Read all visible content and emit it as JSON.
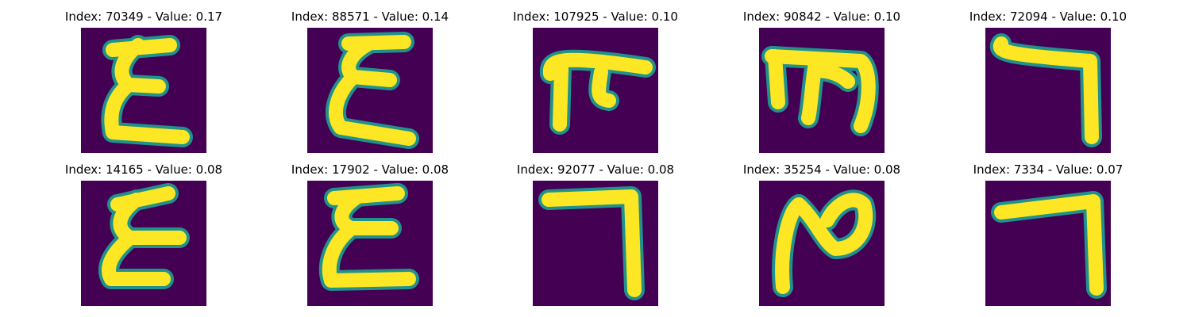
{
  "colors": {
    "background": "#440154",
    "stroke": "#fde725",
    "edge": "#21918c"
  },
  "panels": [
    {
      "title": "Index: 70349 - Value: 0.17",
      "glyph": "epsilon-glyph-1"
    },
    {
      "title": "Index: 88571 - Value: 0.14",
      "glyph": "epsilon-glyph-2"
    },
    {
      "title": "Index: 107925 - Value: 0.10",
      "glyph": "tau-glyph"
    },
    {
      "title": "Index: 90842 - Value: 0.10",
      "glyph": "m-glyph"
    },
    {
      "title": "Index: 72094 - Value: 0.10",
      "glyph": "seven-glyph-1"
    },
    {
      "title": "Index: 14165 - Value: 0.08",
      "glyph": "epsilon-glyph-3"
    },
    {
      "title": "Index: 17902 - Value: 0.08",
      "glyph": "epsilon-glyph-4"
    },
    {
      "title": "Index: 92077 - Value: 0.08",
      "glyph": "seven-glyph-2"
    },
    {
      "title": "Index: 35254 - Value: 0.08",
      "glyph": "n-glyph"
    },
    {
      "title": "Index: 7334 - Value: 0.07",
      "glyph": "seven-glyph-3"
    }
  ]
}
